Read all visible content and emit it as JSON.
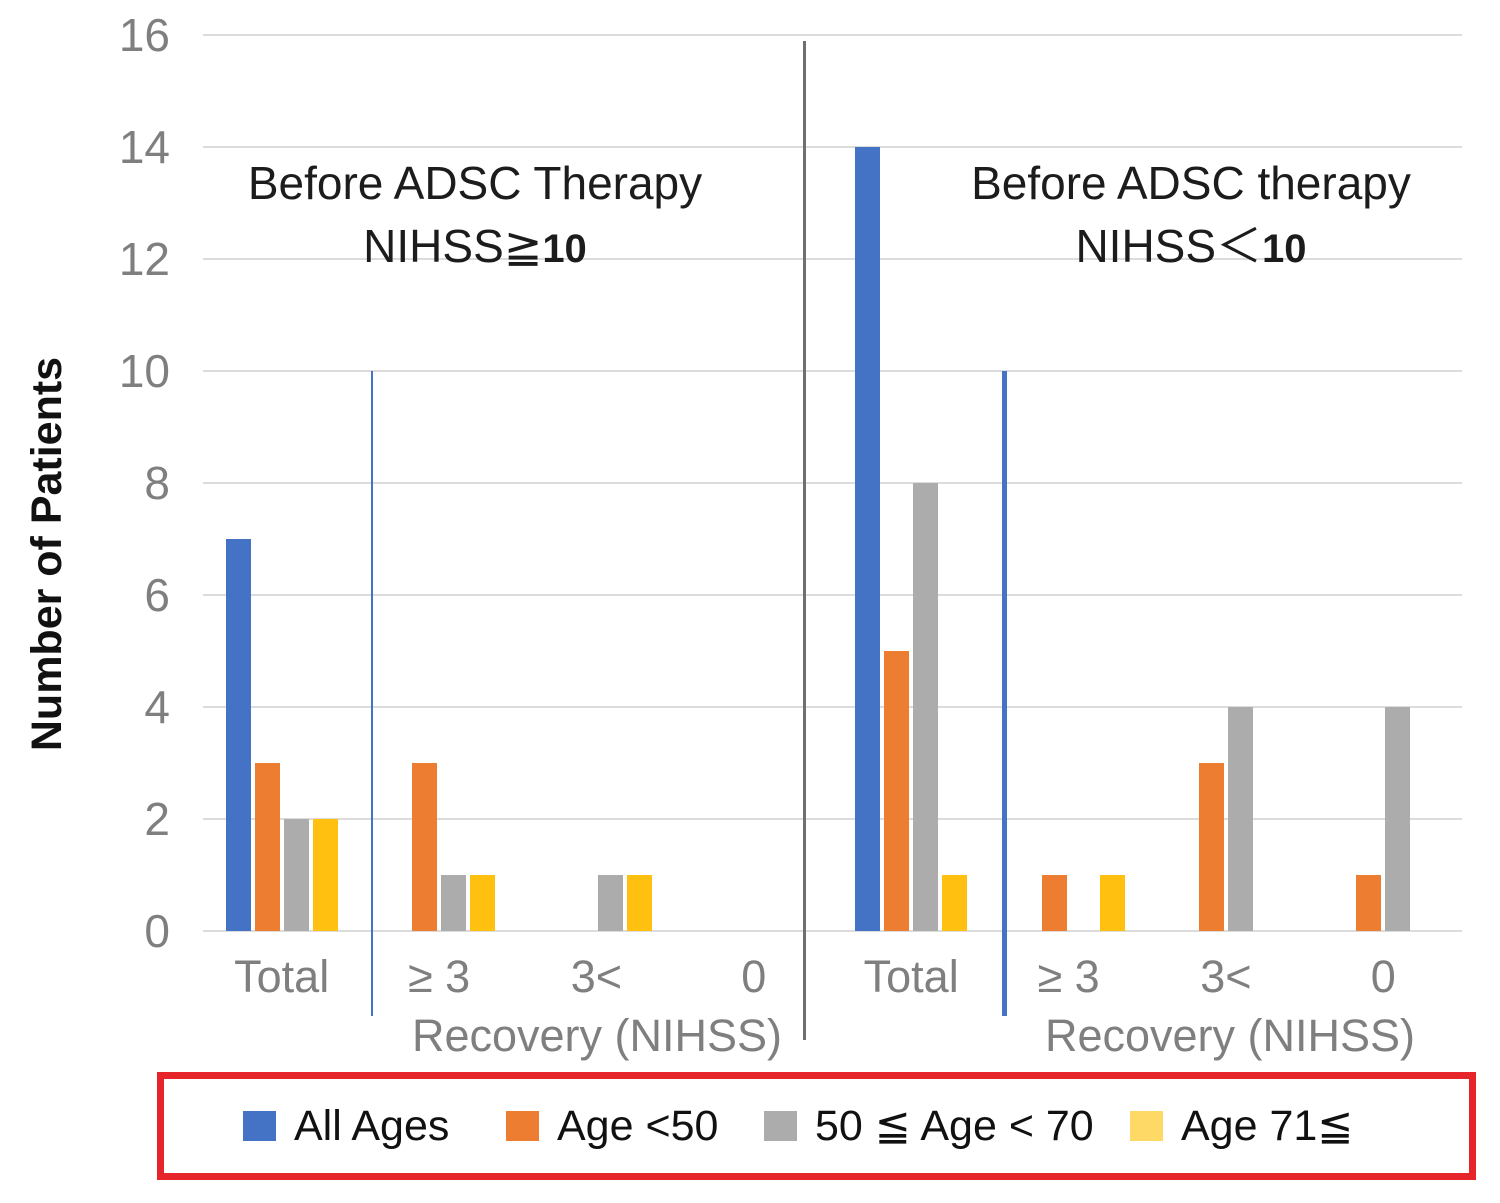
{
  "chart_data": {
    "type": "bar",
    "ylabel": "Number of Patients",
    "ylim": [
      0,
      16
    ],
    "ytick_values": [
      0,
      2,
      4,
      6,
      8,
      10,
      12,
      14,
      16
    ],
    "categories": [
      "Total",
      "≥ 3",
      "3<",
      "0"
    ],
    "axis_group_label": "Recovery (NIHSS)",
    "grid": "horizontal",
    "legend_position": "bottom",
    "panels": [
      {
        "title1": "Before ADSC Therapy",
        "title2_prefix": "NIHSS≧",
        "title2_bold": "10",
        "series": [
          {
            "name": "All Ages",
            "values": [
              7,
              0,
              0,
              0
            ]
          },
          {
            "name": "Age <50",
            "values": [
              3,
              3,
              0,
              0
            ]
          },
          {
            "name": "50 ≦ Age < 70",
            "values": [
              2,
              1,
              1,
              0
            ]
          },
          {
            "name": "Age 71≦",
            "values": [
              2,
              1,
              1,
              0
            ]
          }
        ]
      },
      {
        "title1": "Before ADSC therapy",
        "title2_prefix": "NIHSS＜",
        "title2_bold": "10",
        "series": [
          {
            "name": "All Ages",
            "values": [
              14,
              0,
              0,
              0
            ]
          },
          {
            "name": "Age <50",
            "values": [
              5,
              1,
              3,
              1
            ]
          },
          {
            "name": "50 ≦ Age < 70",
            "values": [
              8,
              0,
              4,
              4
            ]
          },
          {
            "name": "Age 71≦",
            "values": [
              1,
              1,
              0,
              0
            ]
          }
        ]
      }
    ],
    "legend": [
      {
        "label": "All Ages",
        "swatch_color": "#4472C4"
      },
      {
        "label": "Age <50",
        "swatch_color": "#ED7D31"
      },
      {
        "label": "50 ≦ Age < 70",
        "swatch_color": "#ACACAC"
      },
      {
        "label": "Age 71≦",
        "swatch_color": "#FFD966"
      }
    ],
    "colors": {
      "series": [
        "#4472C4",
        "#ED7D31",
        "#ACACAC",
        "#FFC010"
      ],
      "gridline": "#DCDCDC",
      "axis_text": "#7F7F7F",
      "title_text": "#1C1C1C",
      "divider": "#6F6E73",
      "separator_blue": "#4472C4",
      "legend_border": "#E5252A"
    }
  }
}
